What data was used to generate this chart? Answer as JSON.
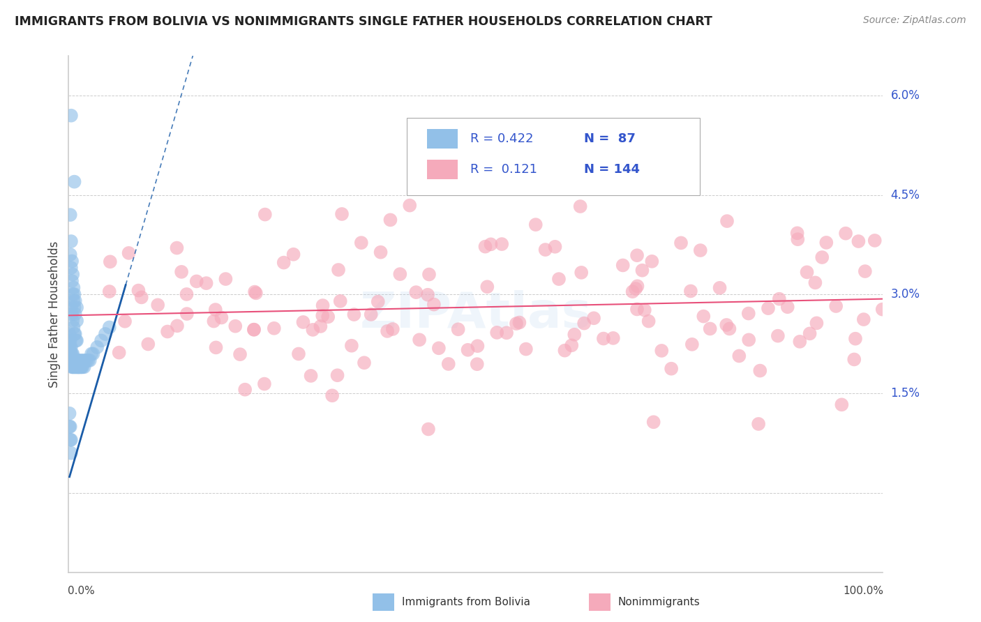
{
  "title": "IMMIGRANTS FROM BOLIVIA VS NONIMMIGRANTS SINGLE FATHER HOUSEHOLDS CORRELATION CHART",
  "source": "Source: ZipAtlas.com",
  "ylabel": "Single Father Households",
  "yticks": [
    0.0,
    0.015,
    0.03,
    0.045,
    0.06
  ],
  "ytick_labels": [
    "",
    "1.5%",
    "3.0%",
    "4.5%",
    "6.0%"
  ],
  "xmin": 0.0,
  "xmax": 1.0,
  "ymin": -0.012,
  "ymax": 0.066,
  "legend_r_blue": "0.422",
  "legend_n_blue": "87",
  "legend_r_pink": "0.121",
  "legend_n_pink": "144",
  "blue_color": "#92c0e8",
  "pink_color": "#f5aabb",
  "blue_line_color": "#1a5ca8",
  "pink_line_color": "#e8507a",
  "title_color": "#222222",
  "source_color": "#888888",
  "axis_color": "#cccccc",
  "grid_color": "#cccccc",
  "legend_text_color": "#3355cc",
  "blue_slope": 0.42,
  "blue_intercept": 0.002,
  "blue_line_xstart": 0.001,
  "blue_line_xend": 0.07,
  "blue_dash_xstart": 0.001,
  "blue_dash_xend": 0.185,
  "pink_slope": 0.0025,
  "pink_intercept": 0.0268,
  "pink_line_xstart": 0.0,
  "pink_line_xend": 1.0
}
